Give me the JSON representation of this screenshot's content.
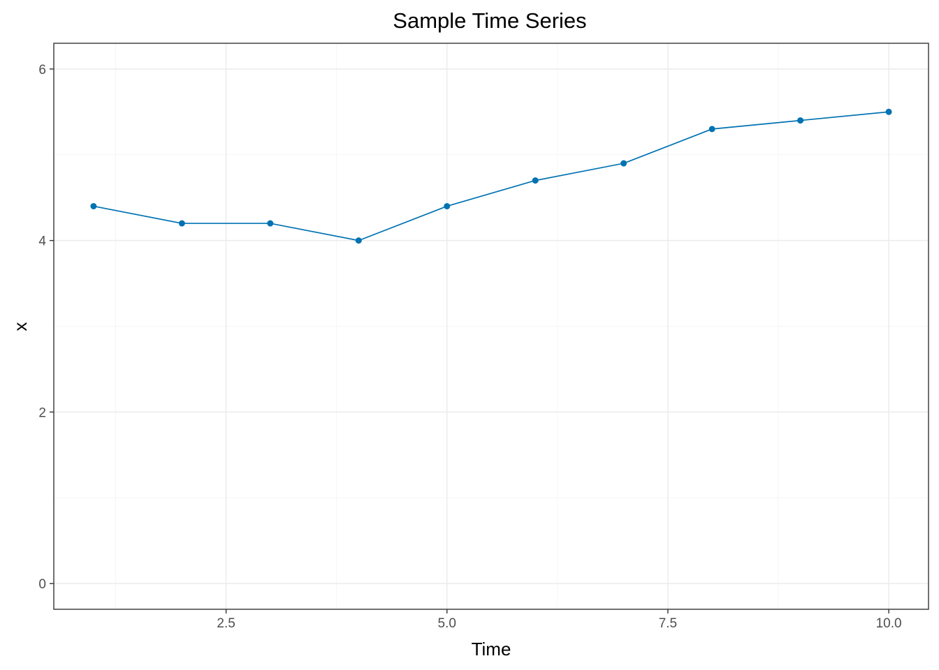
{
  "chart_data": {
    "type": "line",
    "title": "Sample Time Series",
    "xlabel": "Time",
    "ylabel": "x",
    "x": [
      1,
      2,
      3,
      4,
      5,
      6,
      7,
      8,
      9,
      10
    ],
    "series": [
      {
        "values": [
          4.4,
          4.2,
          4.2,
          4.0,
          4.4,
          4.7,
          4.9,
          5.3,
          5.4,
          5.5
        ],
        "color": "#0072b2"
      }
    ],
    "xlim": [
      0.55,
      10.45
    ],
    "ylim": [
      -0.3,
      6.3
    ],
    "x_ticks": [
      2.5,
      5.0,
      7.5,
      10.0
    ],
    "x_tick_labels": [
      "2.5",
      "5.0",
      "7.5",
      "10.0"
    ],
    "x_minor_ticks": [
      1.25,
      3.75,
      6.25,
      8.75
    ],
    "y_ticks": [
      0,
      2,
      4,
      6
    ],
    "y_tick_labels": [
      "0",
      "2",
      "4",
      "6"
    ],
    "y_minor_ticks": [
      1,
      3,
      5
    ],
    "grid": true,
    "legend": "none",
    "line_color": "#0072b2",
    "marker": "circle"
  }
}
